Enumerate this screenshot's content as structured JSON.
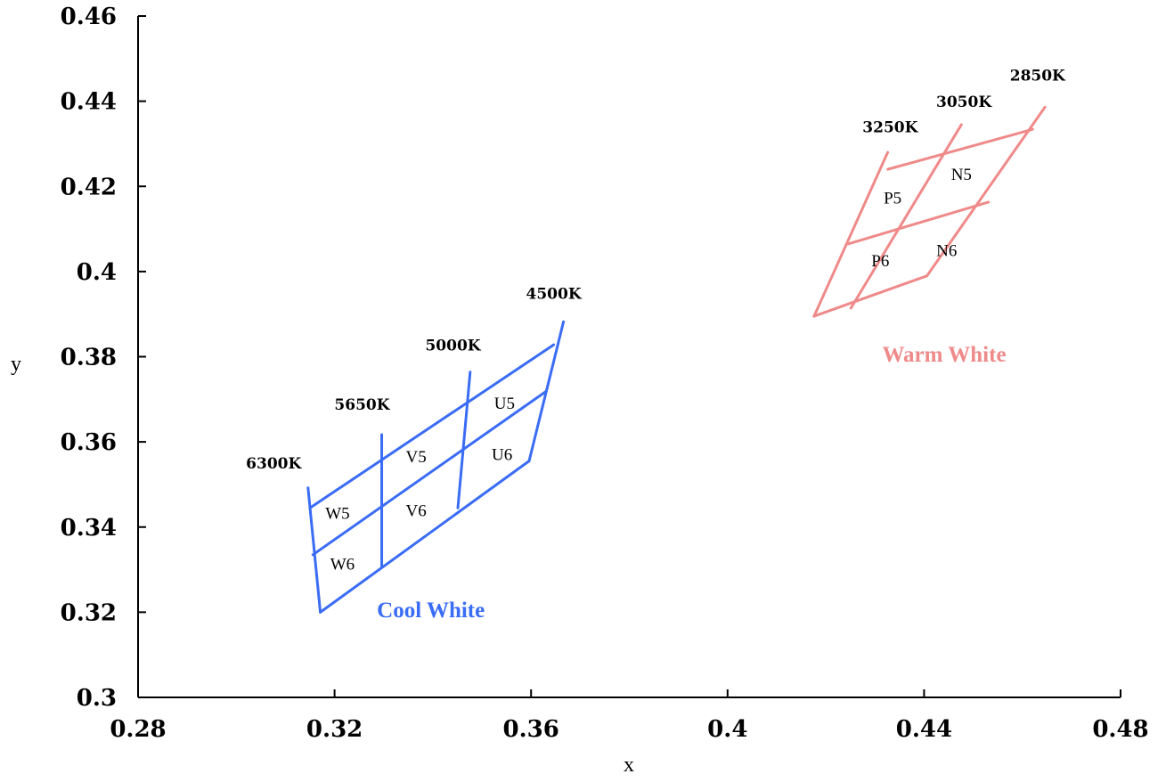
{
  "chart_data": {
    "type": "line",
    "xlabel": "x",
    "ylabel": "y",
    "xlim": [
      0.28,
      0.48
    ],
    "ylim": [
      0.3,
      0.46
    ],
    "x_ticks": [
      "0.28",
      "0.32",
      "0.36",
      "0.4",
      "0.44",
      "0.48"
    ],
    "y_ticks": [
      "0.3",
      "0.32",
      "0.34",
      "0.36",
      "0.38",
      "0.4",
      "0.42",
      "0.44",
      "0.46"
    ],
    "grid": false,
    "groups": [
      {
        "name": "Cool White",
        "color": "#3a6cf4",
        "lines": [
          [
            [
              0.3146,
              0.3492
            ],
            [
              0.3171,
              0.32
            ]
          ],
          [
            [
              0.3296,
              0.3617
            ],
            [
              0.3296,
              0.3306
            ]
          ],
          [
            [
              0.3476,
              0.3764
            ],
            [
              0.3451,
              0.3445
            ]
          ],
          [
            [
              0.3666,
              0.3882
            ],
            [
              0.3596,
              0.3555
            ]
          ],
          [
            [
              0.315,
              0.3445
            ],
            [
              0.3646,
              0.3828
            ]
          ],
          [
            [
              0.3156,
              0.3335
            ],
            [
              0.3631,
              0.3719
            ]
          ],
          [
            [
              0.3171,
              0.32
            ],
            [
              0.3596,
              0.3555
            ]
          ]
        ],
        "temperature_labels": [
          {
            "text": "6300K",
            "x": 0.3076,
            "y": 0.3537
          },
          {
            "text": "5650K",
            "x": 0.3256,
            "y": 0.3676
          },
          {
            "text": "5000K",
            "x": 0.3441,
            "y": 0.3815
          },
          {
            "text": "4500K",
            "x": 0.3646,
            "y": 0.3936
          }
        ],
        "bin_labels": [
          {
            "text": "W5",
            "x": 0.3206,
            "y": 0.3419
          },
          {
            "text": "W6",
            "x": 0.3216,
            "y": 0.33
          },
          {
            "text": "V5",
            "x": 0.3366,
            "y": 0.3552
          },
          {
            "text": "V6",
            "x": 0.3366,
            "y": 0.3426
          },
          {
            "text": "U5",
            "x": 0.3546,
            "y": 0.3678
          },
          {
            "text": "U6",
            "x": 0.3541,
            "y": 0.3557
          }
        ],
        "label": {
          "text": "Cool White",
          "x": 0.3396,
          "y": 0.3188
        }
      },
      {
        "name": "Warm White",
        "color": "#ef8a8a",
        "lines": [
          [
            [
              0.4326,
              0.428
            ],
            [
              0.4176,
              0.3895
            ]
          ],
          [
            [
              0.4476,
              0.4345
            ],
            [
              0.4251,
              0.3914
            ]
          ],
          [
            [
              0.4646,
              0.4386
            ],
            [
              0.4406,
              0.399
            ]
          ],
          [
            [
              0.4326,
              0.424
            ],
            [
              0.4621,
              0.4334
            ]
          ],
          [
            [
              0.4246,
              0.4065
            ],
            [
              0.4531,
              0.4163
            ]
          ],
          [
            [
              0.4176,
              0.3895
            ],
            [
              0.4406,
              0.399
            ]
          ]
        ],
        "temperature_labels": [
          {
            "text": "3250K",
            "x": 0.4331,
            "y": 0.4327
          },
          {
            "text": "3050K",
            "x": 0.4481,
            "y": 0.4387
          },
          {
            "text": "2850K",
            "x": 0.4631,
            "y": 0.4448
          }
        ],
        "bin_labels": [
          {
            "text": "P5",
            "x": 0.4336,
            "y": 0.416
          },
          {
            "text": "N5",
            "x": 0.4476,
            "y": 0.4215
          },
          {
            "text": "P6",
            "x": 0.4311,
            "y": 0.4012
          },
          {
            "text": "N6",
            "x": 0.4446,
            "y": 0.4036
          }
        ],
        "label": {
          "text": "Warm White",
          "x": 0.4441,
          "y": 0.3788
        }
      }
    ]
  }
}
